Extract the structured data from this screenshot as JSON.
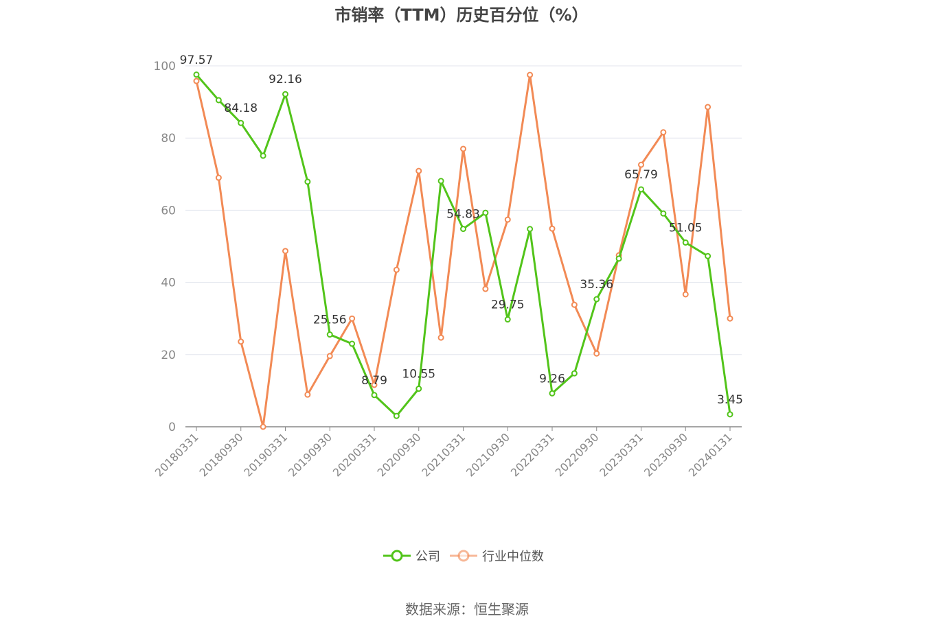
{
  "chart_data": {
    "type": "line",
    "title": "市销率（TTM）历史百分位（%）",
    "categories": [
      "20180331",
      null,
      "20180930",
      null,
      "20190331",
      null,
      "20190930",
      null,
      "20200331",
      null,
      "20200930",
      null,
      "20210331",
      null,
      "20210930",
      null,
      "20220331",
      null,
      "20220930",
      null,
      "20230331",
      null,
      "20230930",
      null,
      "20240131"
    ],
    "series": [
      {
        "name": "公司",
        "color": "#52c41a",
        "values": [
          97.57,
          90.5,
          84.18,
          75.1,
          92.16,
          67.9,
          25.56,
          23.0,
          8.79,
          3.0,
          10.55,
          68.1,
          54.83,
          59.3,
          29.75,
          54.8,
          9.26,
          14.8,
          35.36,
          46.6,
          65.79,
          59.1,
          51.05,
          47.3,
          3.45
        ],
        "value_labels": [
          "97.57",
          null,
          "84.18",
          null,
          "92.16",
          null,
          "25.56",
          null,
          "8.79",
          null,
          "10.55",
          null,
          "54.83",
          null,
          "29.75",
          null,
          "9.26",
          null,
          "35.36",
          null,
          "65.79",
          null,
          "51.05",
          null,
          "3.45"
        ]
      },
      {
        "name": "行业中位数",
        "color": "#f28a55",
        "values": [
          95.8,
          69.0,
          23.6,
          0,
          48.7,
          8.9,
          19.6,
          30.0,
          11.6,
          43.5,
          70.9,
          24.7,
          77.0,
          38.2,
          57.4,
          97.5,
          54.9,
          33.8,
          20.3,
          47.5,
          72.6,
          81.6,
          36.7,
          88.6,
          30.0
        ]
      }
    ],
    "ylim": [
      0,
      100
    ],
    "yticks": [
      0,
      20,
      40,
      60,
      80,
      100
    ],
    "grid": true,
    "legend": "bottom",
    "source": "数据来源：恒生聚源"
  }
}
